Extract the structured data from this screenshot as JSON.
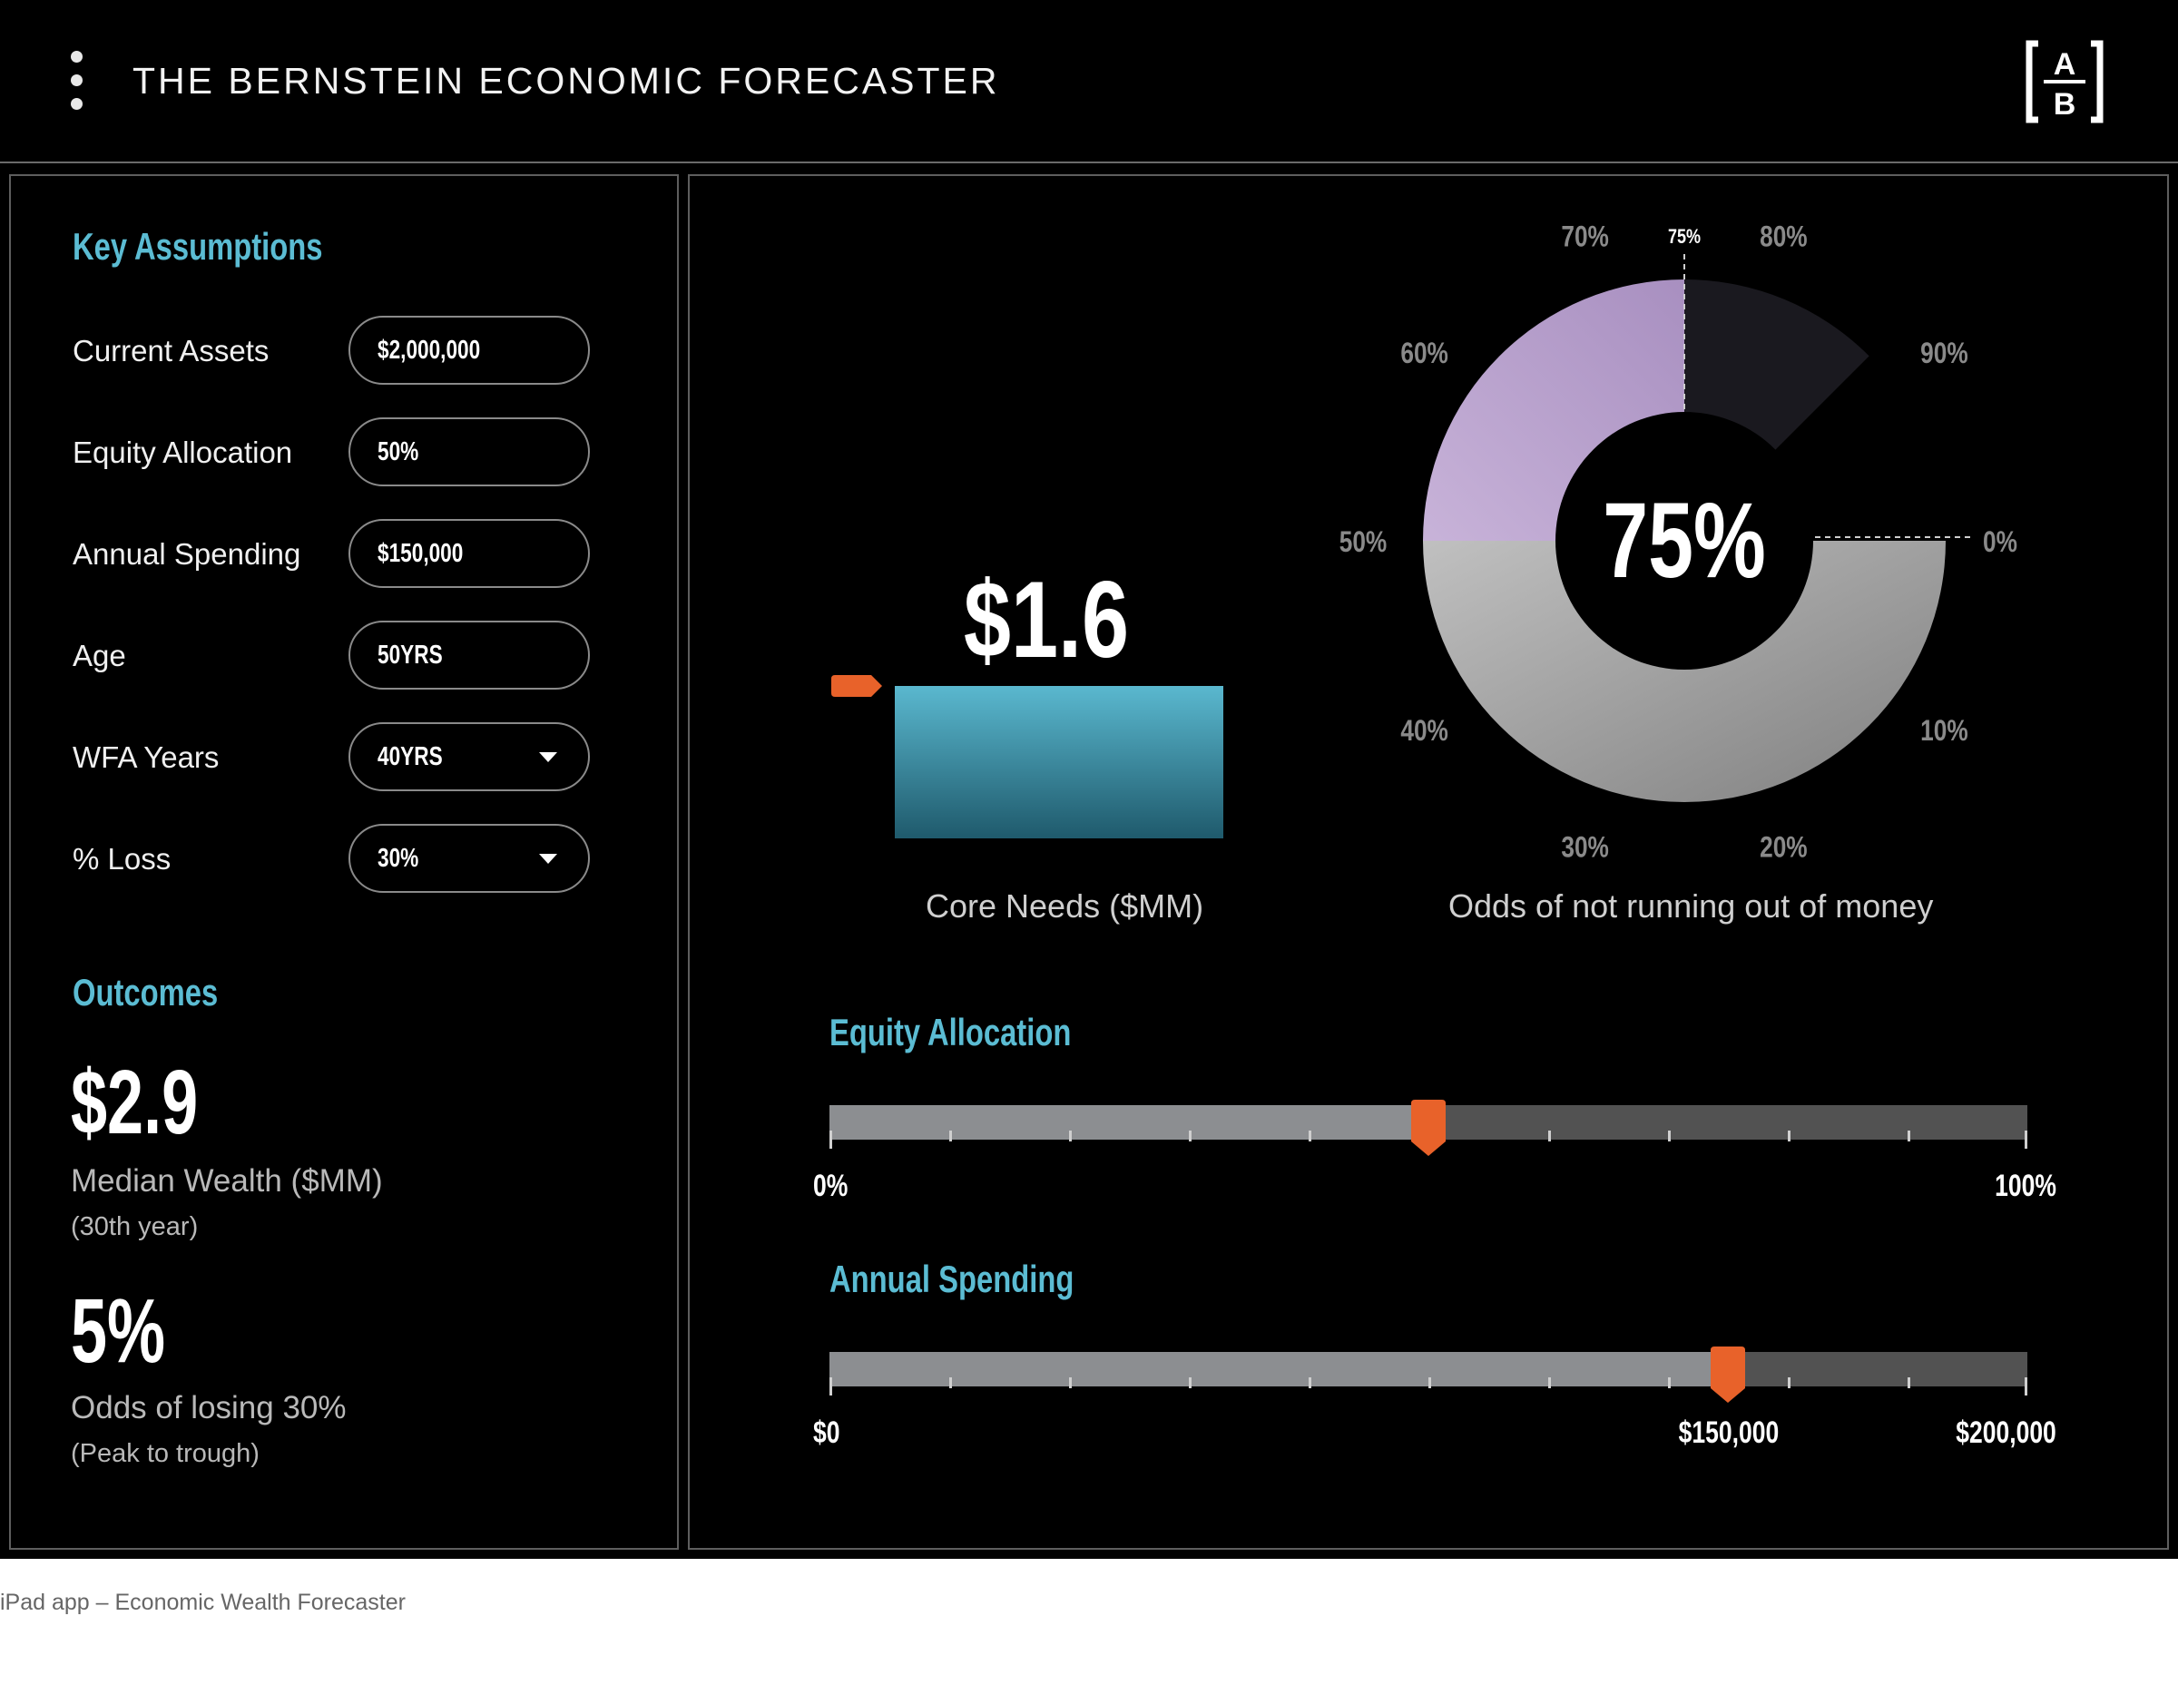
{
  "header": {
    "title": "THE BERNSTEIN ECONOMIC FORECASTER",
    "logo_top": "A",
    "logo_bottom": "B",
    "menu_icon": "vertical-ellipsis-icon"
  },
  "key_assumptions": {
    "title": "Key Assumptions",
    "fields": [
      {
        "label": "Current Assets",
        "value": "$2,000,000",
        "type": "input"
      },
      {
        "label": "Equity Allocation",
        "value": "50%",
        "type": "input"
      },
      {
        "label": "Annual Spending",
        "value": "$150,000",
        "type": "input"
      },
      {
        "label": "Age",
        "value": "50YRS",
        "type": "input"
      },
      {
        "label": "WFA Years",
        "value": "40YRS",
        "type": "dropdown"
      },
      {
        "label": "% Loss",
        "value": "30%",
        "type": "dropdown"
      }
    ]
  },
  "outcomes": {
    "title": "Outcomes",
    "median_wealth": {
      "value": "$2.9",
      "label": "Median Wealth ($MM)",
      "sub": "(30th year)"
    },
    "loss_odds": {
      "value": "5%",
      "label": "Odds of losing 30%",
      "sub": "(Peak to trough)"
    }
  },
  "core_needs": {
    "value_label": "$1.6",
    "caption": "Core Needs ($MM)"
  },
  "odds_gauge": {
    "center_label": "75%",
    "caption": "Odds of not running out of money",
    "marker_label": "75%",
    "tick_labels": [
      "0%",
      "10%",
      "20%",
      "30%",
      "40%",
      "50%",
      "60%",
      "70%",
      "80%",
      "90%"
    ]
  },
  "chart_data": [
    {
      "type": "bar",
      "categories": [
        "Core Needs ($MM)"
      ],
      "values": [
        1.6
      ]
    },
    {
      "type": "pie",
      "value": 0.75,
      "tick_labels": [
        "0%",
        "10%",
        "20%",
        "30%",
        "40%",
        "50%",
        "60%",
        "70%",
        "75%",
        "80%",
        "90%"
      ]
    }
  ],
  "sliders": {
    "equity": {
      "title": "Equity Allocation",
      "min_label": "0%",
      "max_label": "100%",
      "fraction": 0.5
    },
    "spending": {
      "title": "Annual Spending",
      "min_label": "$0",
      "mid_label": "$150,000",
      "max_label": "$200,000",
      "fraction": 0.75
    }
  },
  "colors": {
    "accent": "#5bbcd3",
    "thumb": "#e8622a",
    "bar_top": "#5ab8cf",
    "bar_bottom": "#1f5a6c",
    "donut_purple": "#b79ecf",
    "donut_gray": "#8f8f8f",
    "donut_remaining": "#1a191f"
  },
  "footer": {
    "caption": "iPad app – Economic Wealth Forecaster"
  }
}
